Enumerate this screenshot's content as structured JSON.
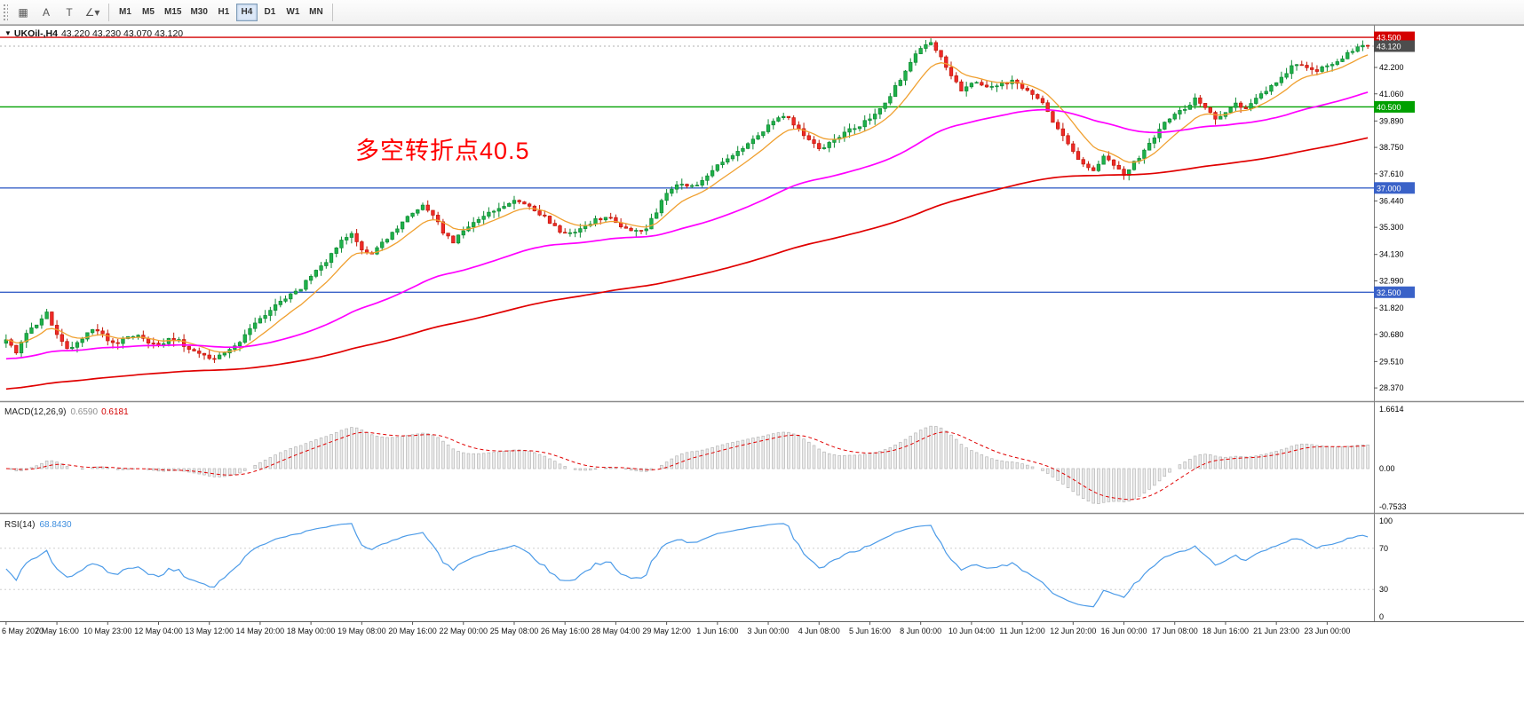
{
  "toolbar": {
    "tools": [
      {
        "name": "chart-grid-icon",
        "glyph": "▦"
      },
      {
        "name": "cursor-arrow-icon",
        "glyph": "A"
      },
      {
        "name": "text-tool-icon",
        "glyph": "T"
      },
      {
        "name": "angle-tool-icon",
        "glyph": "∠",
        "dropdown": "▾"
      }
    ],
    "timeframes": [
      {
        "label": "M1",
        "active": false
      },
      {
        "label": "M5",
        "active": false
      },
      {
        "label": "M15",
        "active": false
      },
      {
        "label": "M30",
        "active": false
      },
      {
        "label": "H1",
        "active": false
      },
      {
        "label": "H4",
        "active": true
      },
      {
        "label": "D1",
        "active": false
      },
      {
        "label": "W1",
        "active": false
      },
      {
        "label": "MN",
        "active": false
      }
    ]
  },
  "symbol_header": {
    "collapse_icon": "▼",
    "symbol": "UKOil-,H4",
    "ohlc": "43.220 43.230 43.070 43.120"
  },
  "annotation": {
    "text": "多空转折点40.5",
    "color": "#ff0000"
  },
  "macd_panel": {
    "title": "MACD(12,26,9)",
    "main_value": "0.6590",
    "signal_value": "0.6181",
    "scale_labels": [
      "1.6614",
      "0.00",
      "-0.7533"
    ],
    "histogram_fill": "#ededed",
    "histogram_stroke": "#b5b5b5",
    "signal_color": "#e00000",
    "params": {
      "fast": 12,
      "slow": 26,
      "signal": 9
    }
  },
  "rsi_panel": {
    "title": "RSI(14)",
    "value": "68.8430",
    "period": 14,
    "line_color": "#4c9be8",
    "scale_labels": [
      "100",
      "70",
      "30",
      "0"
    ],
    "levels": [
      70,
      30
    ]
  },
  "chart_data": {
    "type": "candlestick",
    "symbol": "UKOil-",
    "timeframe": "H4",
    "last_ohlc": {
      "open": 43.22,
      "high": 43.23,
      "low": 43.07,
      "close": 43.12
    },
    "bars": 269,
    "price_axis_range": [
      27.8,
      44.0
    ],
    "candle_colors": {
      "up": "#1fb14a",
      "up_stroke": "#0e8a33",
      "down": "#ef2929",
      "down_stroke": "#c21807"
    },
    "moving_averages": [
      {
        "name": "ma-fast",
        "color": "#f0a030",
        "alpha": 0.18,
        "seed": null
      },
      {
        "name": "ma-medium",
        "color": "#ff00ff",
        "alpha": 0.032,
        "seed": 29.6
      },
      {
        "name": "ma-slow",
        "color": "#e00000",
        "alpha": 0.012,
        "seed": 28.3
      }
    ],
    "horizontal_lines": [
      {
        "price": 43.5,
        "color": "#d40000",
        "label": "43.500"
      },
      {
        "price": 40.5,
        "color": "#00a000",
        "label": "40.500"
      },
      {
        "price": 37.0,
        "color": "#3a62c8",
        "label": "37.000"
      },
      {
        "price": 32.5,
        "color": "#3a62c8",
        "label": "32.500"
      }
    ],
    "current_price": {
      "value": 43.12,
      "label": "43.120",
      "badge_color": "#4d4d4d"
    },
    "price_ticks": [
      {
        "label": "42.200",
        "price": 42.2
      },
      {
        "label": "41.060",
        "price": 41.06
      },
      {
        "label": "39.890",
        "price": 39.89
      },
      {
        "label": "38.750",
        "price": 38.75
      },
      {
        "label": "37.610",
        "price": 37.61
      },
      {
        "label": "36.440",
        "price": 36.44
      },
      {
        "label": "35.300",
        "price": 35.3
      },
      {
        "label": "34.130",
        "price": 34.13
      },
      {
        "label": "32.990",
        "price": 32.99
      },
      {
        "label": "31.820",
        "price": 31.82
      },
      {
        "label": "30.680",
        "price": 30.68
      },
      {
        "label": "29.510",
        "price": 29.51
      },
      {
        "label": "28.370",
        "price": 28.37
      }
    ],
    "x_tick_labels": [
      "6 May 2020",
      "7 May 16:00",
      "10 May 23:00",
      "12 May 04:00",
      "13 May 12:00",
      "14 May 20:00",
      "18 May 00:00",
      "19 May 08:00",
      "20 May 16:00",
      "22 May 00:00",
      "25 May 08:00",
      "26 May 16:00",
      "28 May 04:00",
      "29 May 12:00",
      "1 Jun 16:00",
      "3 Jun 00:00",
      "4 Jun 08:00",
      "5 Jun 16:00",
      "8 Jun 00:00",
      "10 Jun 04:00",
      "11 Jun 12:00",
      "12 Jun 20:00",
      "16 Jun 00:00",
      "17 Jun 08:00",
      "18 Jun 16:00",
      "21 Jun 23:00",
      "23 Jun 00:00"
    ],
    "close_path_anchors": [
      [
        0,
        30.4
      ],
      [
        2,
        29.9
      ],
      [
        4,
        30.7
      ],
      [
        6,
        31.1
      ],
      [
        8,
        31.6
      ],
      [
        10,
        30.6
      ],
      [
        12,
        30.1
      ],
      [
        14,
        30.3
      ],
      [
        16,
        30.8
      ],
      [
        18,
        30.9
      ],
      [
        20,
        30.4
      ],
      [
        22,
        30.3
      ],
      [
        24,
        30.6
      ],
      [
        26,
        30.7
      ],
      [
        28,
        30.3
      ],
      [
        30,
        30.2
      ],
      [
        32,
        30.5
      ],
      [
        34,
        30.4
      ],
      [
        36,
        30.0
      ],
      [
        38,
        29.9
      ],
      [
        40,
        29.6
      ],
      [
        42,
        29.8
      ],
      [
        44,
        30.1
      ],
      [
        46,
        30.4
      ],
      [
        48,
        30.9
      ],
      [
        50,
        31.3
      ],
      [
        52,
        31.7
      ],
      [
        54,
        32.1
      ],
      [
        56,
        32.4
      ],
      [
        58,
        32.7
      ],
      [
        60,
        33.2
      ],
      [
        62,
        33.6
      ],
      [
        64,
        34.1
      ],
      [
        66,
        34.7
      ],
      [
        68,
        35.1
      ],
      [
        70,
        34.3
      ],
      [
        72,
        34.1
      ],
      [
        74,
        34.6
      ],
      [
        76,
        35.1
      ],
      [
        78,
        35.5
      ],
      [
        80,
        35.9
      ],
      [
        82,
        36.2
      ],
      [
        84,
        35.9
      ],
      [
        86,
        35.1
      ],
      [
        88,
        34.7
      ],
      [
        90,
        35.1
      ],
      [
        92,
        35.5
      ],
      [
        94,
        35.8
      ],
      [
        96,
        36.0
      ],
      [
        98,
        36.2
      ],
      [
        100,
        36.4
      ],
      [
        102,
        36.3
      ],
      [
        104,
        36.0
      ],
      [
        106,
        35.8
      ],
      [
        108,
        35.3
      ],
      [
        110,
        35.0
      ],
      [
        112,
        35.1
      ],
      [
        114,
        35.3
      ],
      [
        116,
        35.6
      ],
      [
        118,
        35.8
      ],
      [
        120,
        35.5
      ],
      [
        122,
        35.2
      ],
      [
        124,
        35.1
      ],
      [
        126,
        35.3
      ],
      [
        128,
        36.0
      ],
      [
        130,
        36.8
      ],
      [
        132,
        37.2
      ],
      [
        134,
        37.0
      ],
      [
        136,
        37.2
      ],
      [
        138,
        37.5
      ],
      [
        140,
        38.0
      ],
      [
        142,
        38.3
      ],
      [
        144,
        38.6
      ],
      [
        146,
        38.9
      ],
      [
        148,
        39.3
      ],
      [
        150,
        39.7
      ],
      [
        152,
        40.1
      ],
      [
        154,
        40.0
      ],
      [
        156,
        39.5
      ],
      [
        158,
        39.1
      ],
      [
        160,
        38.7
      ],
      [
        162,
        38.9
      ],
      [
        164,
        39.2
      ],
      [
        166,
        39.5
      ],
      [
        168,
        39.7
      ],
      [
        170,
        40.0
      ],
      [
        172,
        40.4
      ],
      [
        174,
        41.0
      ],
      [
        176,
        41.7
      ],
      [
        178,
        42.4
      ],
      [
        180,
        43.1
      ],
      [
        182,
        43.3
      ],
      [
        184,
        42.7
      ],
      [
        186,
        41.8
      ],
      [
        188,
        41.2
      ],
      [
        190,
        41.6
      ],
      [
        192,
        41.4
      ],
      [
        194,
        41.3
      ],
      [
        196,
        41.5
      ],
      [
        198,
        41.6
      ],
      [
        200,
        41.3
      ],
      [
        202,
        41.1
      ],
      [
        204,
        40.7
      ],
      [
        206,
        39.9
      ],
      [
        208,
        39.2
      ],
      [
        210,
        38.6
      ],
      [
        212,
        38.0
      ],
      [
        214,
        37.8
      ],
      [
        216,
        38.3
      ],
      [
        218,
        38.0
      ],
      [
        220,
        37.6
      ],
      [
        222,
        38.1
      ],
      [
        224,
        38.6
      ],
      [
        226,
        39.2
      ],
      [
        228,
        39.9
      ],
      [
        230,
        40.2
      ],
      [
        232,
        40.4
      ],
      [
        234,
        40.9
      ],
      [
        236,
        40.5
      ],
      [
        238,
        40.0
      ],
      [
        240,
        40.2
      ],
      [
        242,
        40.6
      ],
      [
        244,
        40.4
      ],
      [
        246,
        40.8
      ],
      [
        248,
        41.2
      ],
      [
        250,
        41.6
      ],
      [
        252,
        42.0
      ],
      [
        254,
        42.4
      ],
      [
        256,
        42.2
      ],
      [
        258,
        42.0
      ],
      [
        260,
        42.3
      ],
      [
        262,
        42.5
      ],
      [
        264,
        42.8
      ],
      [
        266,
        43.1
      ],
      [
        268,
        43.12
      ]
    ]
  }
}
